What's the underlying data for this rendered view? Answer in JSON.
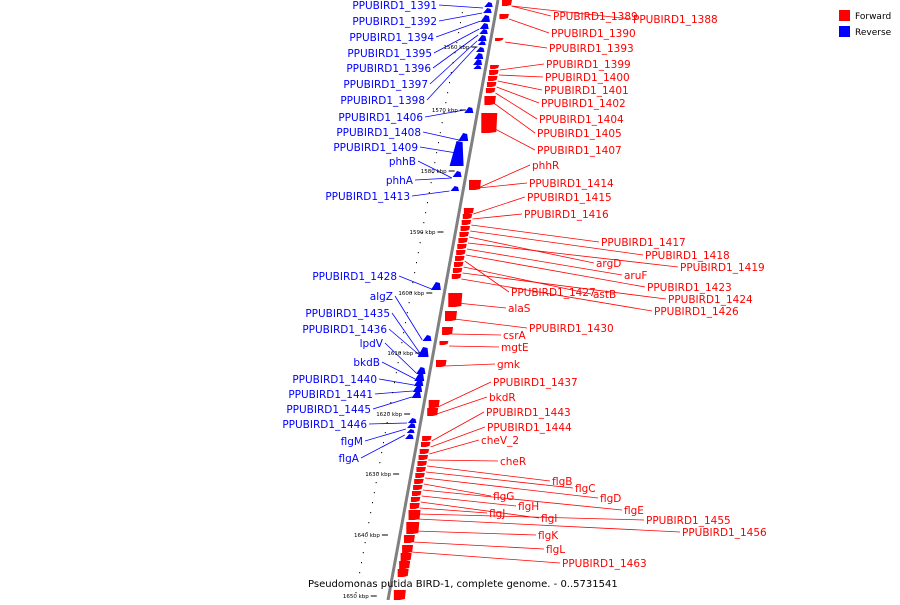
{
  "caption": "Pseudomonas putida BIRD-1, complete genome. - 0..5731541",
  "legend": [
    {
      "label": "Forward",
      "color": "#ff0000"
    },
    {
      "label": "Reverse",
      "color": "#0000ff"
    }
  ],
  "colors": {
    "forward": "#ff0000",
    "reverse": "#0000ff",
    "backbone": "#808080"
  },
  "ticks": [
    "1560 kbp",
    "1570 kbp",
    "1580 kbp",
    "1590 kbp",
    "1600 kbp",
    "1610 kbp",
    "1620 kbp",
    "1630 kbp",
    "1640 kbp",
    "1650 kbp"
  ],
  "reverse_labels": [
    "PPUBIRD1_1391",
    "PPUBIRD1_1392",
    "PPUBIRD1_1394",
    "PPUBIRD1_1395",
    "PPUBIRD1_1396",
    "PPUBIRD1_1397",
    "PPUBIRD1_1398",
    "PPUBIRD1_1406",
    "PPUBIRD1_1408",
    "PPUBIRD1_1409",
    "phhB",
    "phhA",
    "PPUBIRD1_1413",
    "PPUBIRD1_1428",
    "algZ",
    "PPUBIRD1_1435",
    "PPUBIRD1_1436",
    "lpdV",
    "bkdB",
    "PPUBIRD1_1440",
    "PPUBIRD1_1441",
    "PPUBIRD1_1445",
    "PPUBIRD1_1446",
    "flgM",
    "flgA"
  ],
  "forward_labels": [
    "PPUBIRD1_1389",
    "PPUBIRD1_1388",
    "PPUBIRD1_1390",
    "PPUBIRD1_1393",
    "PPUBIRD1_1399",
    "PPUBIRD1_1400",
    "PPUBIRD1_1401",
    "PPUBIRD1_1402",
    "PPUBIRD1_1404",
    "PPUBIRD1_1405",
    "PPUBIRD1_1407",
    "phhR",
    "PPUBIRD1_1414",
    "PPUBIRD1_1415",
    "PPUBIRD1_1416",
    "PPUBIRD1_1417",
    "PPUBIRD1_1418",
    "argD",
    "PPUBIRD1_1419",
    "aruF",
    "PPUBIRD1_1423",
    "PPUBIRD1_1427",
    "astB",
    "PPUBIRD1_1424",
    "PPUBIRD1_1426",
    "alaS",
    "PPUBIRD1_1430",
    "csrA",
    "mgtE",
    "gmk",
    "PPUBIRD1_1437",
    "bkdR",
    "PPUBIRD1_1443",
    "PPUBIRD1_1444",
    "cheV_2",
    "cheR",
    "flgB",
    "flgC",
    "flgD",
    "flgG",
    "flgE",
    "flgH",
    "flgI",
    "flgJ",
    "PPUBIRD1_1455",
    "PPUBIRD1_1456",
    "flgK",
    "flgL",
    "PPUBIRD1_1463"
  ]
}
